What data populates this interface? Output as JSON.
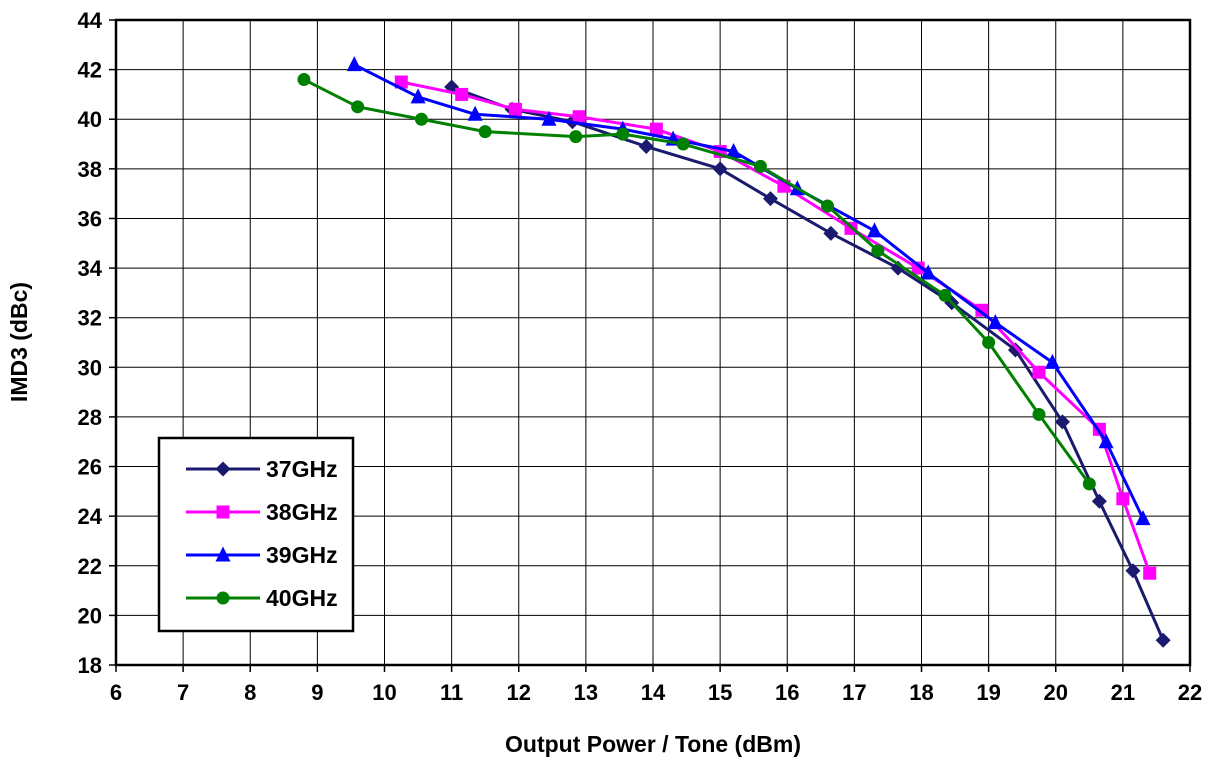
{
  "chart_data": {
    "type": "line",
    "title": "",
    "xlabel": "Output Power / Tone (dBm)",
    "ylabel": "IMD3 (dBc)",
    "xlim": [
      6,
      22
    ],
    "ylim": [
      18,
      44
    ],
    "xticks": [
      6,
      7,
      8,
      9,
      10,
      11,
      12,
      13,
      14,
      15,
      16,
      17,
      18,
      19,
      20,
      21,
      22
    ],
    "yticks": [
      18,
      20,
      22,
      24,
      26,
      28,
      30,
      32,
      34,
      36,
      38,
      40,
      42,
      44
    ],
    "xtick_labels": [
      "6",
      "7",
      "8",
      "9",
      "10",
      "11",
      "12",
      "13",
      "14",
      "15",
      "16",
      "17",
      "18",
      "19",
      "20",
      "21",
      "22"
    ],
    "ytick_labels": [
      "18",
      "20",
      "22",
      "24",
      "26",
      "28",
      "30",
      "32",
      "34",
      "36",
      "38",
      "40",
      "42",
      "44"
    ],
    "grid": true,
    "legend_position": "bottom-left",
    "series": [
      {
        "name": "37GHz",
        "color": "#1a1a6e",
        "marker": "diamond",
        "x": [
          11.0,
          11.9,
          12.8,
          13.9,
          15.0,
          15.75,
          16.65,
          17.65,
          18.45,
          19.4,
          20.1,
          20.65,
          21.15,
          21.6
        ],
        "y": [
          41.3,
          40.4,
          39.9,
          38.9,
          38.0,
          36.8,
          35.4,
          34.0,
          32.6,
          30.7,
          27.8,
          24.6,
          21.8,
          19.0
        ]
      },
      {
        "name": "38GHz",
        "color": "#ff00ff",
        "marker": "square",
        "x": [
          10.25,
          11.15,
          11.95,
          12.9,
          14.05,
          15.0,
          15.95,
          16.95,
          17.95,
          18.9,
          19.75,
          20.65,
          21.0,
          21.4
        ],
        "y": [
          41.5,
          41.0,
          40.4,
          40.1,
          39.6,
          38.7,
          37.3,
          35.6,
          34.0,
          32.3,
          29.8,
          27.5,
          24.7,
          21.7
        ]
      },
      {
        "name": "39GHz",
        "color": "#0000ff",
        "marker": "triangle",
        "x": [
          9.55,
          10.5,
          11.35,
          12.45,
          13.55,
          14.3,
          15.2,
          16.15,
          17.3,
          18.1,
          19.1,
          19.95,
          20.75,
          21.3
        ],
        "y": [
          42.2,
          40.9,
          40.2,
          40.0,
          39.6,
          39.2,
          38.7,
          37.2,
          35.5,
          33.8,
          31.8,
          30.2,
          27.0,
          23.9
        ]
      },
      {
        "name": "40GHz",
        "color": "#008000",
        "marker": "circle",
        "x": [
          8.8,
          9.6,
          10.55,
          11.5,
          12.85,
          13.55,
          14.45,
          15.6,
          16.6,
          17.35,
          18.35,
          19.0,
          19.75,
          20.5
        ],
        "y": [
          41.6,
          40.5,
          40.0,
          39.5,
          39.3,
          39.4,
          39.0,
          38.1,
          36.5,
          34.7,
          32.9,
          31.0,
          28.1,
          25.3
        ]
      }
    ]
  }
}
